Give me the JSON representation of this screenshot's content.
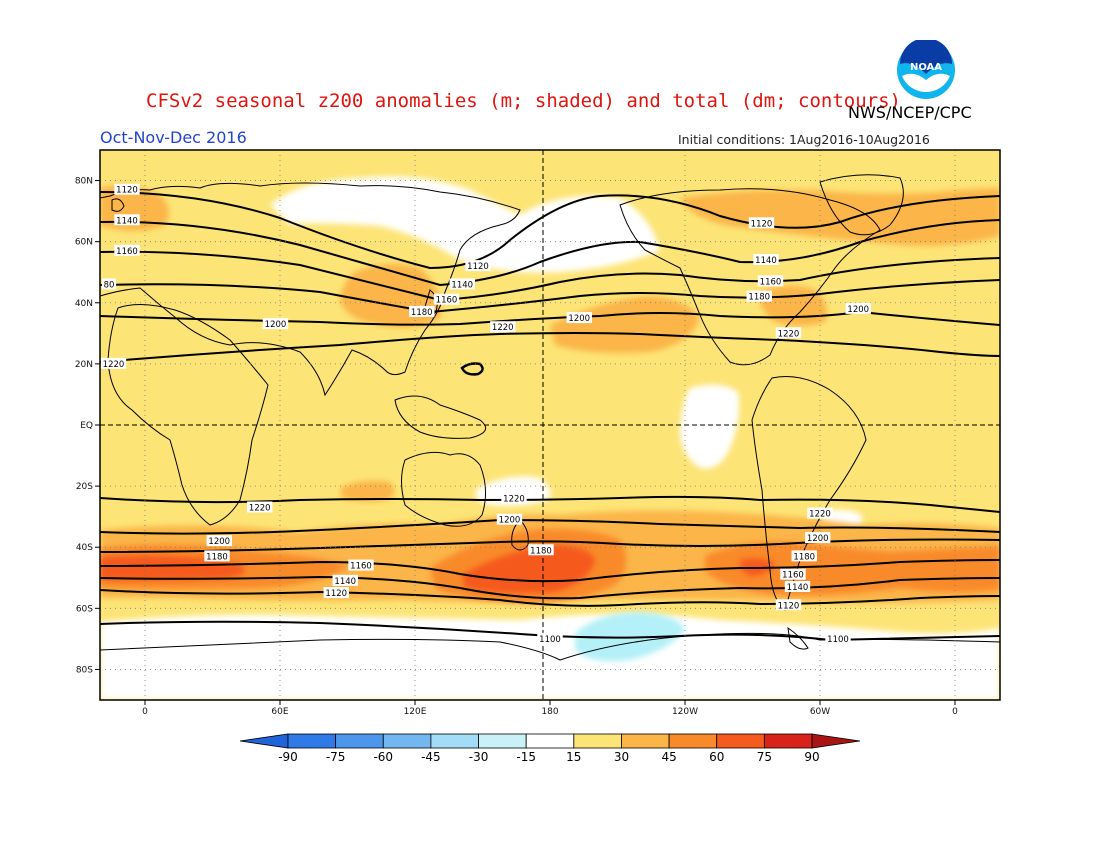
{
  "header": {
    "title": "CFSv2 seasonal z200 anomalies (m; shaded) and total (dm; contours)",
    "agency": "NWS/NCEP/CPC",
    "period": "Oct-Nov-Dec 2016",
    "initial_conditions": "Initial conditions: 1Aug2016-10Aug2016"
  },
  "logo": {
    "text": "NOAA",
    "icon": "noaa-logo-icon"
  },
  "map": {
    "projection": "equirectangular",
    "lon_range": [
      -20,
      380
    ],
    "lat_range": [
      -90,
      90
    ],
    "lat_ticks": [
      {
        "lat": 80,
        "label": "80N"
      },
      {
        "lat": 60,
        "label": "60N"
      },
      {
        "lat": 40,
        "label": "40N"
      },
      {
        "lat": 20,
        "label": "20N"
      },
      {
        "lat": 0,
        "label": "EQ"
      },
      {
        "lat": -20,
        "label": "20S"
      },
      {
        "lat": -40,
        "label": "40S"
      },
      {
        "lat": -60,
        "label": "60S"
      },
      {
        "lat": -80,
        "label": "80S"
      }
    ],
    "lon_ticks": [
      {
        "lon": 0,
        "label": "0"
      },
      {
        "lon": 60,
        "label": "60E"
      },
      {
        "lon": 120,
        "label": "120E"
      },
      {
        "lon": 180,
        "label": "180"
      },
      {
        "lon": 240,
        "label": "120W"
      },
      {
        "lon": 300,
        "label": "60W"
      },
      {
        "lon": 360,
        "label": "0"
      }
    ],
    "contour_labels": [
      {
        "text": "1120",
        "lon": -8,
        "lat": 77
      },
      {
        "text": "1140",
        "lon": -8,
        "lat": 67
      },
      {
        "text": "1160",
        "lon": -8,
        "lat": 57
      },
      {
        "text": "80",
        "lon": -16,
        "lat": 46
      },
      {
        "text": "1200",
        "lon": 58,
        "lat": 33
      },
      {
        "text": "1220",
        "lon": -14,
        "lat": 20
      },
      {
        "text": "1120",
        "lon": 148,
        "lat": 52
      },
      {
        "text": "1140",
        "lon": 141,
        "lat": 46
      },
      {
        "text": "1160",
        "lon": 134,
        "lat": 41
      },
      {
        "text": "1180",
        "lon": 123,
        "lat": 37
      },
      {
        "text": "1220",
        "lon": 159,
        "lat": 32
      },
      {
        "text": "1200",
        "lon": 193,
        "lat": 35
      },
      {
        "text": "1120",
        "lon": 274,
        "lat": 66
      },
      {
        "text": "1140",
        "lon": 276,
        "lat": 54
      },
      {
        "text": "1160",
        "lon": 278,
        "lat": 47
      },
      {
        "text": "1180",
        "lon": 273,
        "lat": 42
      },
      {
        "text": "1200",
        "lon": 317,
        "lat": 38
      },
      {
        "text": "1220",
        "lon": 286,
        "lat": 30
      },
      {
        "text": "1220",
        "lon": 51,
        "lat": -27
      },
      {
        "text": "1200",
        "lon": 33,
        "lat": -38
      },
      {
        "text": "1180",
        "lon": 32,
        "lat": -43
      },
      {
        "text": "1160",
        "lon": 96,
        "lat": -46
      },
      {
        "text": "1140",
        "lon": 89,
        "lat": -51
      },
      {
        "text": "1120",
        "lon": 85,
        "lat": -55
      },
      {
        "text": "1220",
        "lon": 164,
        "lat": -24
      },
      {
        "text": "1200",
        "lon": 162,
        "lat": -31
      },
      {
        "text": "1180",
        "lon": 176,
        "lat": -41
      },
      {
        "text": "1220",
        "lon": 300,
        "lat": -29
      },
      {
        "text": "1200",
        "lon": 299,
        "lat": -37
      },
      {
        "text": "1180",
        "lon": 293,
        "lat": -43
      },
      {
        "text": "1160",
        "lon": 288,
        "lat": -49
      },
      {
        "text": "1140",
        "lon": 290,
        "lat": -53
      },
      {
        "text": "1120",
        "lon": 286,
        "lat": -59
      },
      {
        "text": "1100",
        "lon": 180,
        "lat": -70
      },
      {
        "text": "1100",
        "lon": 308,
        "lat": -70
      }
    ],
    "colors": {
      "a15_30": "#fde476",
      "a30_45": "#fbb548",
      "a45_60": "#f98a2c",
      "a60_75": "#f55a1e",
      "neutral": "#ffffff",
      "n15_30": "#b4f0f7"
    }
  },
  "colorbar": {
    "labels": [
      "-90",
      "-75",
      "-60",
      "-45",
      "-30",
      "-15",
      "15",
      "30",
      "45",
      "60",
      "75",
      "90"
    ],
    "colors": [
      "#1f64d9",
      "#2f7ae6",
      "#4c97ec",
      "#74b7f0",
      "#a2dcf7",
      "#c8f2f8",
      "#ffffff",
      "#fde476",
      "#fbb548",
      "#f98a2c",
      "#f55a1e",
      "#d8231a",
      "#a81515"
    ]
  }
}
